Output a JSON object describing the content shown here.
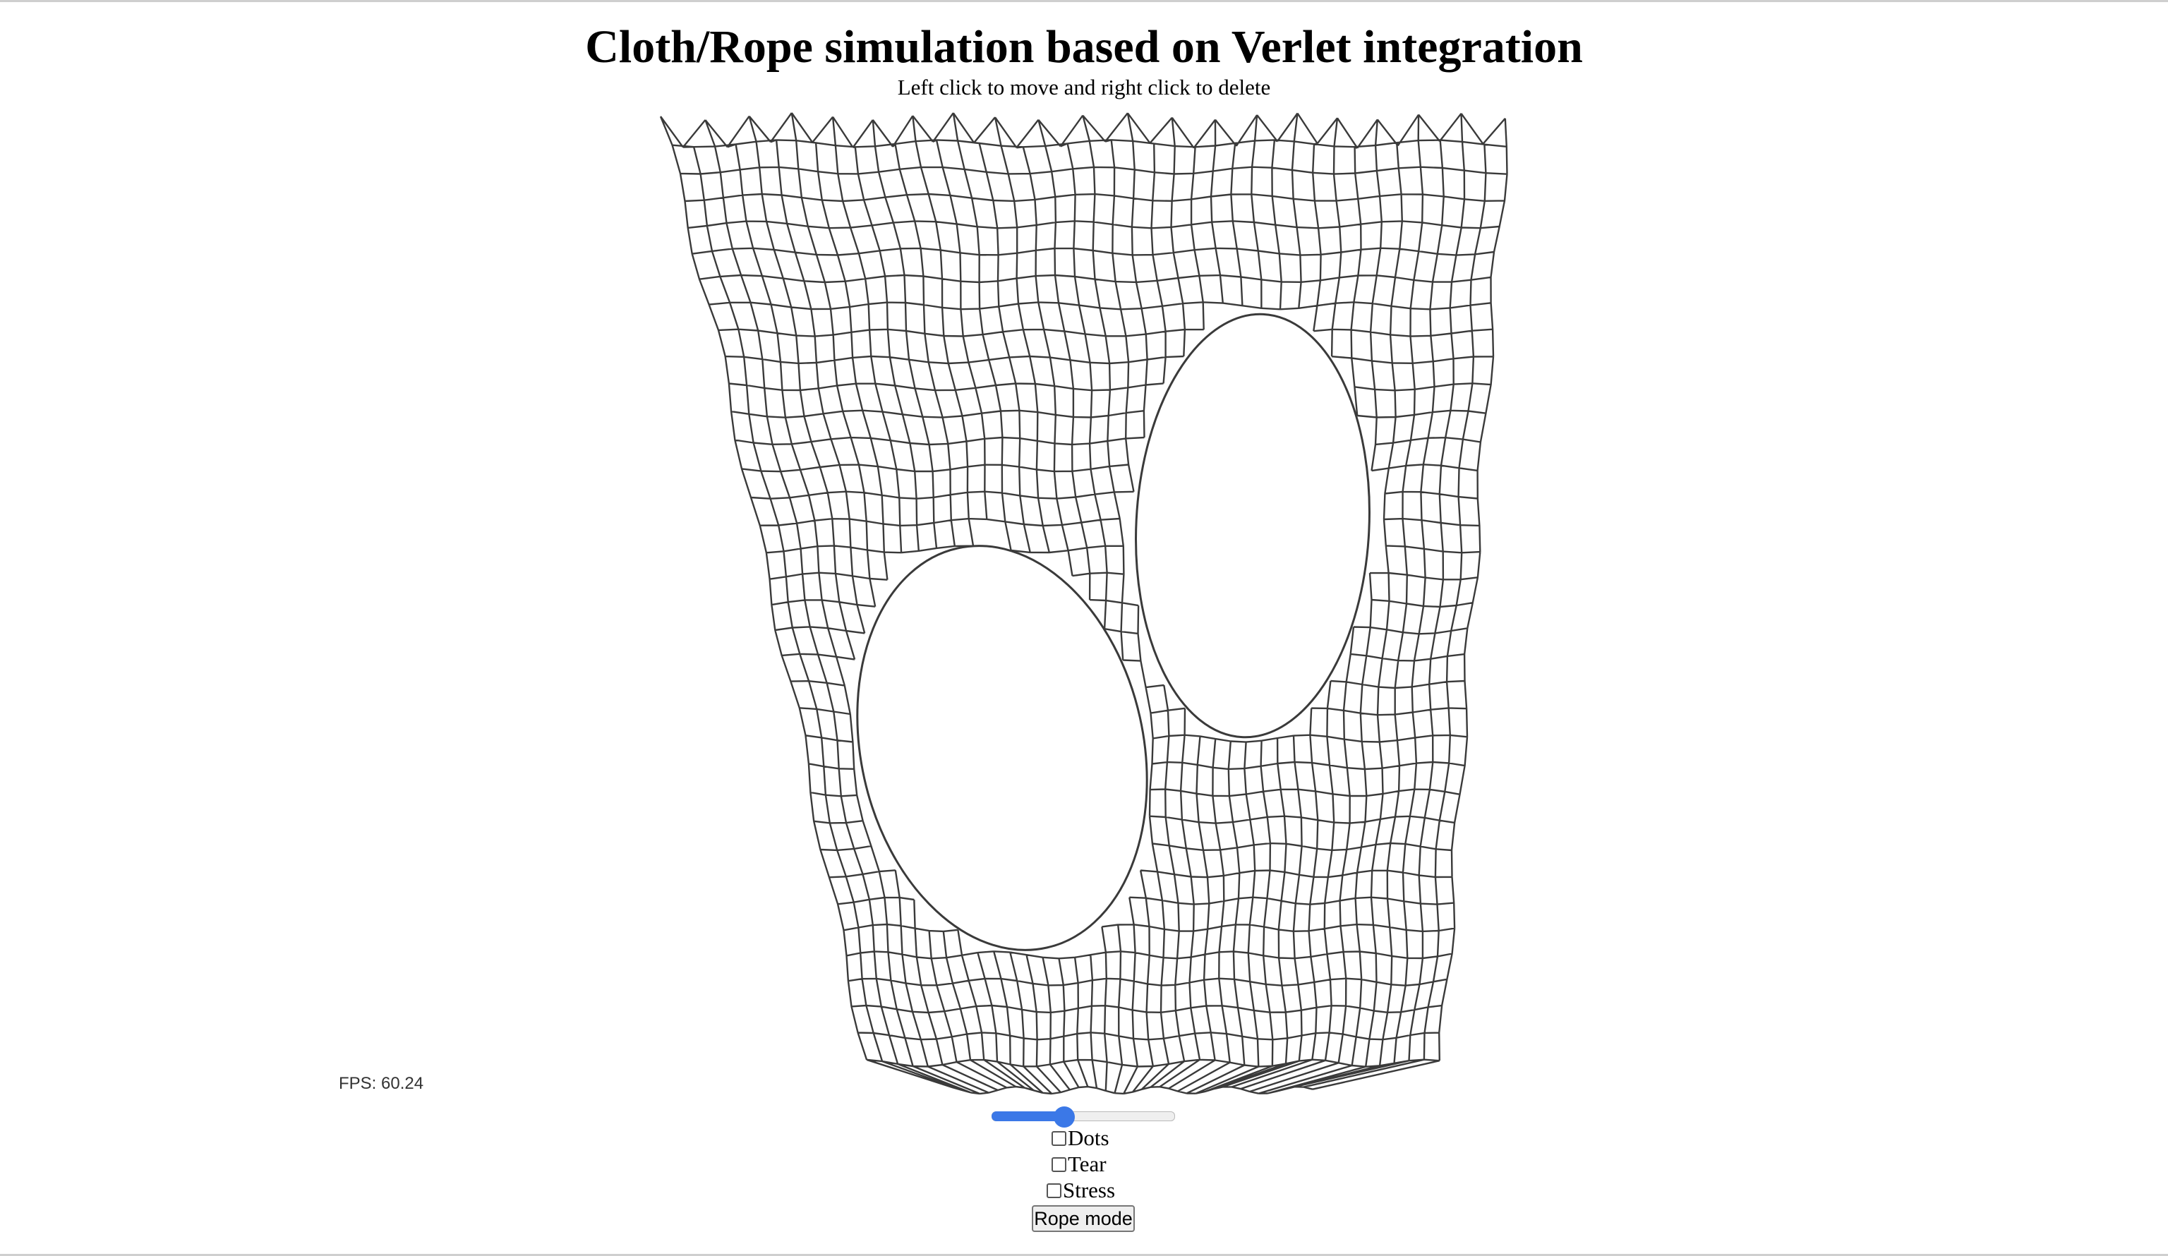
{
  "header": {
    "title": "Cloth/Rope simulation based on Verlet integration",
    "subtitle": "Left click to move and right click to delete"
  },
  "stats": {
    "fps_text": "FPS: 60.24"
  },
  "controls": {
    "slider_value_fraction": 0.4,
    "slider_accent": "#3b78e7",
    "checkboxes": [
      {
        "label": "Dots",
        "checked": false
      },
      {
        "label": "Tear",
        "checked": false
      },
      {
        "label": "Stress",
        "checked": false
      }
    ],
    "rope_button_label": "Rope mode"
  },
  "colors": {
    "cloth_stroke": "#3a3a3a",
    "background": "#ffffff"
  }
}
